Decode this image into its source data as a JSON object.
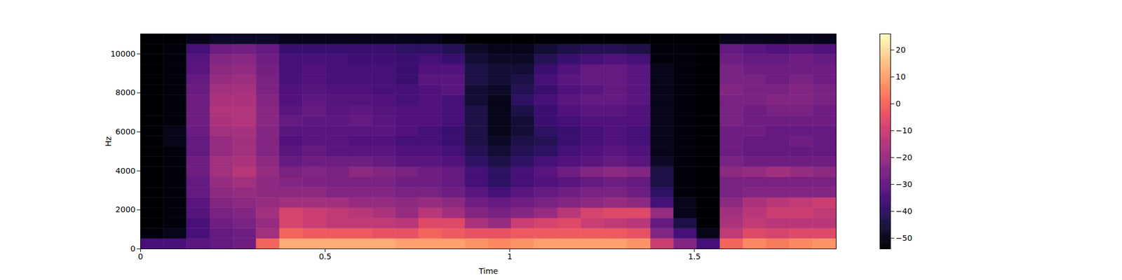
{
  "chart_data": {
    "type": "heatmap",
    "x_label": "Time",
    "y_label": "Hz",
    "color": "magma",
    "xlim": [
      0,
      1.884
    ],
    "xticks": [
      0,
      0.5,
      1,
      1.5
    ],
    "ylim": [
      0,
      11025
    ],
    "yticks": [
      0,
      2000,
      4000,
      6000,
      8000,
      10000
    ],
    "x_edges": [
      0,
      0.0628,
      0.1256,
      0.1884,
      0.2512,
      0.314,
      0.3768,
      0.4396,
      0.5024,
      0.5652,
      0.628,
      0.6908,
      0.7536,
      0.8164,
      0.8792,
      0.942,
      1.0048,
      1.0676,
      1.1304,
      1.1932,
      1.256,
      1.3188,
      1.3816,
      1.4444,
      1.5072,
      1.57,
      1.6328,
      1.6956,
      1.7584,
      1.8212,
      1.884
    ],
    "y_edges": [
      0,
      525,
      1050,
      1575,
      2100,
      2625,
      3150,
      3675,
      4200,
      4725,
      5250,
      5775,
      6300,
      6825,
      7350,
      7875,
      8400,
      8925,
      9450,
      9975,
      10500,
      11025
    ],
    "cells": [
      [
        -35,
        -52,
        -54,
        -54,
        -54,
        -54,
        -54,
        -54,
        -54,
        -54,
        -54,
        -54,
        -54,
        -54,
        -54,
        -54,
        -54,
        -54,
        -54,
        -54,
        -54
      ],
      [
        -35,
        -50,
        -52,
        -52,
        -52,
        -52,
        -52,
        -52,
        -52,
        -52,
        -50,
        -50,
        -52,
        -52,
        -52,
        -52,
        -52,
        -52,
        -52,
        -52,
        -54
      ],
      [
        -32,
        -35,
        -35,
        -33,
        -32,
        -30,
        -30,
        -28,
        -28,
        -30,
        -30,
        -29,
        -28,
        -28,
        -28,
        -29,
        -30,
        -32,
        -33,
        -36,
        -50
      ],
      [
        -30,
        -30,
        -28,
        -26,
        -24,
        -22,
        -20,
        -18,
        -18,
        -20,
        -20,
        -18,
        -16,
        -15,
        -16,
        -18,
        -20,
        -22,
        -24,
        -28,
        -48
      ],
      [
        -28,
        -28,
        -26,
        -24,
        -22,
        -20,
        -18,
        -14,
        -16,
        -18,
        -18,
        -17,
        -15,
        -15,
        -16,
        -17,
        -19,
        -21,
        -23,
        -27,
        -48
      ],
      [
        0,
        -18,
        -20,
        -18,
        -20,
        -22,
        -22,
        -20,
        -22,
        -24,
        -24,
        -24,
        -23,
        -23,
        -24,
        -25,
        -26,
        -27,
        -28,
        -30,
        -48
      ],
      [
        12,
        0,
        -8,
        -8,
        -18,
        -22,
        -24,
        -26,
        -30,
        -32,
        -34,
        -32,
        -30,
        -32,
        -34,
        -34,
        -35,
        -36,
        -36,
        -38,
        -50
      ],
      [
        12,
        -2,
        -10,
        -10,
        -18,
        -22,
        -25,
        -24,
        -28,
        -30,
        -32,
        -32,
        -31,
        -30,
        -31,
        -33,
        -34,
        -34,
        -36,
        -38,
        -50
      ],
      [
        12,
        -2,
        -12,
        -12,
        -18,
        -24,
        -26,
        -26,
        -28,
        -32,
        -32,
        -32,
        -31,
        -32,
        -33,
        -34,
        -35,
        -36,
        -36,
        -38,
        -50
      ],
      [
        12,
        -2,
        -12,
        -14,
        -20,
        -24,
        -26,
        -22,
        -28,
        -32,
        -34,
        -32,
        -30,
        -31,
        -33,
        -34,
        -35,
        -36,
        -37,
        -38,
        -50
      ],
      [
        12,
        -4,
        -12,
        -16,
        -20,
        -24,
        -26,
        -24,
        -30,
        -32,
        -34,
        -32,
        -32,
        -33,
        -34,
        -35,
        -36,
        -36,
        -37,
        -38,
        -50
      ],
      [
        10,
        -4,
        -14,
        -20,
        -22,
        -26,
        -28,
        -26,
        -32,
        -34,
        -36,
        -34,
        -34,
        -34,
        -36,
        -36,
        -38,
        -38,
        -38,
        -40,
        -50
      ],
      [
        10,
        0,
        -6,
        -14,
        -20,
        -26,
        -28,
        -28,
        -32,
        -34,
        -36,
        -36,
        -34,
        -34,
        -34,
        -34,
        -32,
        -34,
        -36,
        -40,
        -50
      ],
      [
        10,
        -2,
        -6,
        -18,
        -22,
        -28,
        -30,
        -30,
        -34,
        -36,
        -38,
        -38,
        -36,
        -36,
        -36,
        -32,
        -32,
        -34,
        -38,
        -42,
        -52
      ],
      [
        8,
        -4,
        -16,
        -24,
        -28,
        -32,
        -36,
        -36,
        -40,
        -42,
        -44,
        -44,
        -44,
        -44,
        -46,
        -46,
        -44,
        -44,
        -46,
        -48,
        -54
      ],
      [
        6,
        -4,
        -20,
        -26,
        -30,
        -36,
        -40,
        -40,
        -44,
        -46,
        -48,
        -50,
        -50,
        -50,
        -50,
        -48,
        -46,
        -46,
        -48,
        -50,
        -54
      ],
      [
        8,
        -2,
        -10,
        -24,
        -28,
        -32,
        -36,
        -36,
        -40,
        -42,
        -44,
        -46,
        -46,
        -44,
        -40,
        -42,
        -44,
        -46,
        -48,
        -50,
        -54
      ],
      [
        10,
        -2,
        -8,
        -20,
        -26,
        -30,
        -34,
        -32,
        -36,
        -40,
        -42,
        -40,
        -38,
        -38,
        -36,
        -38,
        -36,
        -38,
        -42,
        -46,
        -54
      ],
      [
        10,
        -2,
        -6,
        -14,
        -24,
        -28,
        -32,
        -28,
        -34,
        -36,
        -38,
        -38,
        -36,
        -34,
        -32,
        -34,
        -32,
        -34,
        -38,
        -44,
        -54
      ],
      [
        10,
        -2,
        -10,
        -8,
        -22,
        -26,
        -30,
        -24,
        -32,
        -34,
        -36,
        -36,
        -34,
        -32,
        -30,
        -32,
        -30,
        -30,
        -36,
        -42,
        -54
      ],
      [
        10,
        -2,
        -12,
        -6,
        -20,
        -26,
        -28,
        -22,
        -30,
        -32,
        -34,
        -34,
        -34,
        -32,
        -30,
        -30,
        -30,
        -30,
        -34,
        -42,
        -54
      ],
      [
        8,
        -4,
        -14,
        -6,
        -22,
        -28,
        -30,
        -24,
        -32,
        -34,
        -36,
        -36,
        -34,
        -34,
        -32,
        -32,
        -32,
        -32,
        -36,
        -44,
        -54
      ],
      [
        -10,
        -24,
        -30,
        -20,
        -36,
        -40,
        -44,
        -44,
        -48,
        -50,
        -50,
        -50,
        -50,
        -50,
        -50,
        -50,
        -50,
        -50,
        -52,
        -52,
        -54
      ],
      [
        -24,
        -36,
        -44,
        -50,
        -50,
        -52,
        -52,
        -52,
        -52,
        -52,
        -52,
        -52,
        -52,
        -52,
        -52,
        -52,
        -52,
        -52,
        -52,
        -52,
        -54
      ],
      [
        -36,
        -50,
        -54,
        -54,
        -54,
        -54,
        -54,
        -54,
        -54,
        -54,
        -54,
        -54,
        -54,
        -54,
        -54,
        -54,
        -54,
        -54,
        -54,
        -54,
        -54
      ],
      [
        0,
        -12,
        -16,
        -18,
        -22,
        -26,
        -26,
        -22,
        -26,
        -28,
        -28,
        -28,
        -26,
        -26,
        -26,
        -24,
        -26,
        -26,
        -28,
        -30,
        -50
      ],
      [
        6,
        -6,
        -12,
        -14,
        -16,
        -24,
        -26,
        -20,
        -28,
        -30,
        -30,
        -28,
        -28,
        -28,
        -26,
        -26,
        -26,
        -28,
        -30,
        -32,
        -50
      ],
      [
        4,
        -8,
        -14,
        -10,
        -14,
        -24,
        -26,
        -18,
        -28,
        -30,
        -30,
        -30,
        -28,
        -26,
        -24,
        -26,
        -28,
        -28,
        -30,
        -34,
        -50
      ],
      [
        6,
        -6,
        -14,
        -10,
        -12,
        -24,
        -26,
        -20,
        -28,
        -30,
        -28,
        -30,
        -28,
        -26,
        -24,
        -24,
        -26,
        -28,
        -28,
        -32,
        -50
      ],
      [
        8,
        -6,
        -14,
        -12,
        -10,
        -24,
        -26,
        -22,
        -28,
        -30,
        -30,
        -30,
        -28,
        -28,
        -26,
        -26,
        -28,
        -28,
        -30,
        -34,
        -50
      ]
    ],
    "colorbar": {
      "range": [
        -54,
        26
      ],
      "ticks": [
        -50,
        -40,
        -30,
        -20,
        -10,
        0,
        10,
        20
      ]
    }
  }
}
